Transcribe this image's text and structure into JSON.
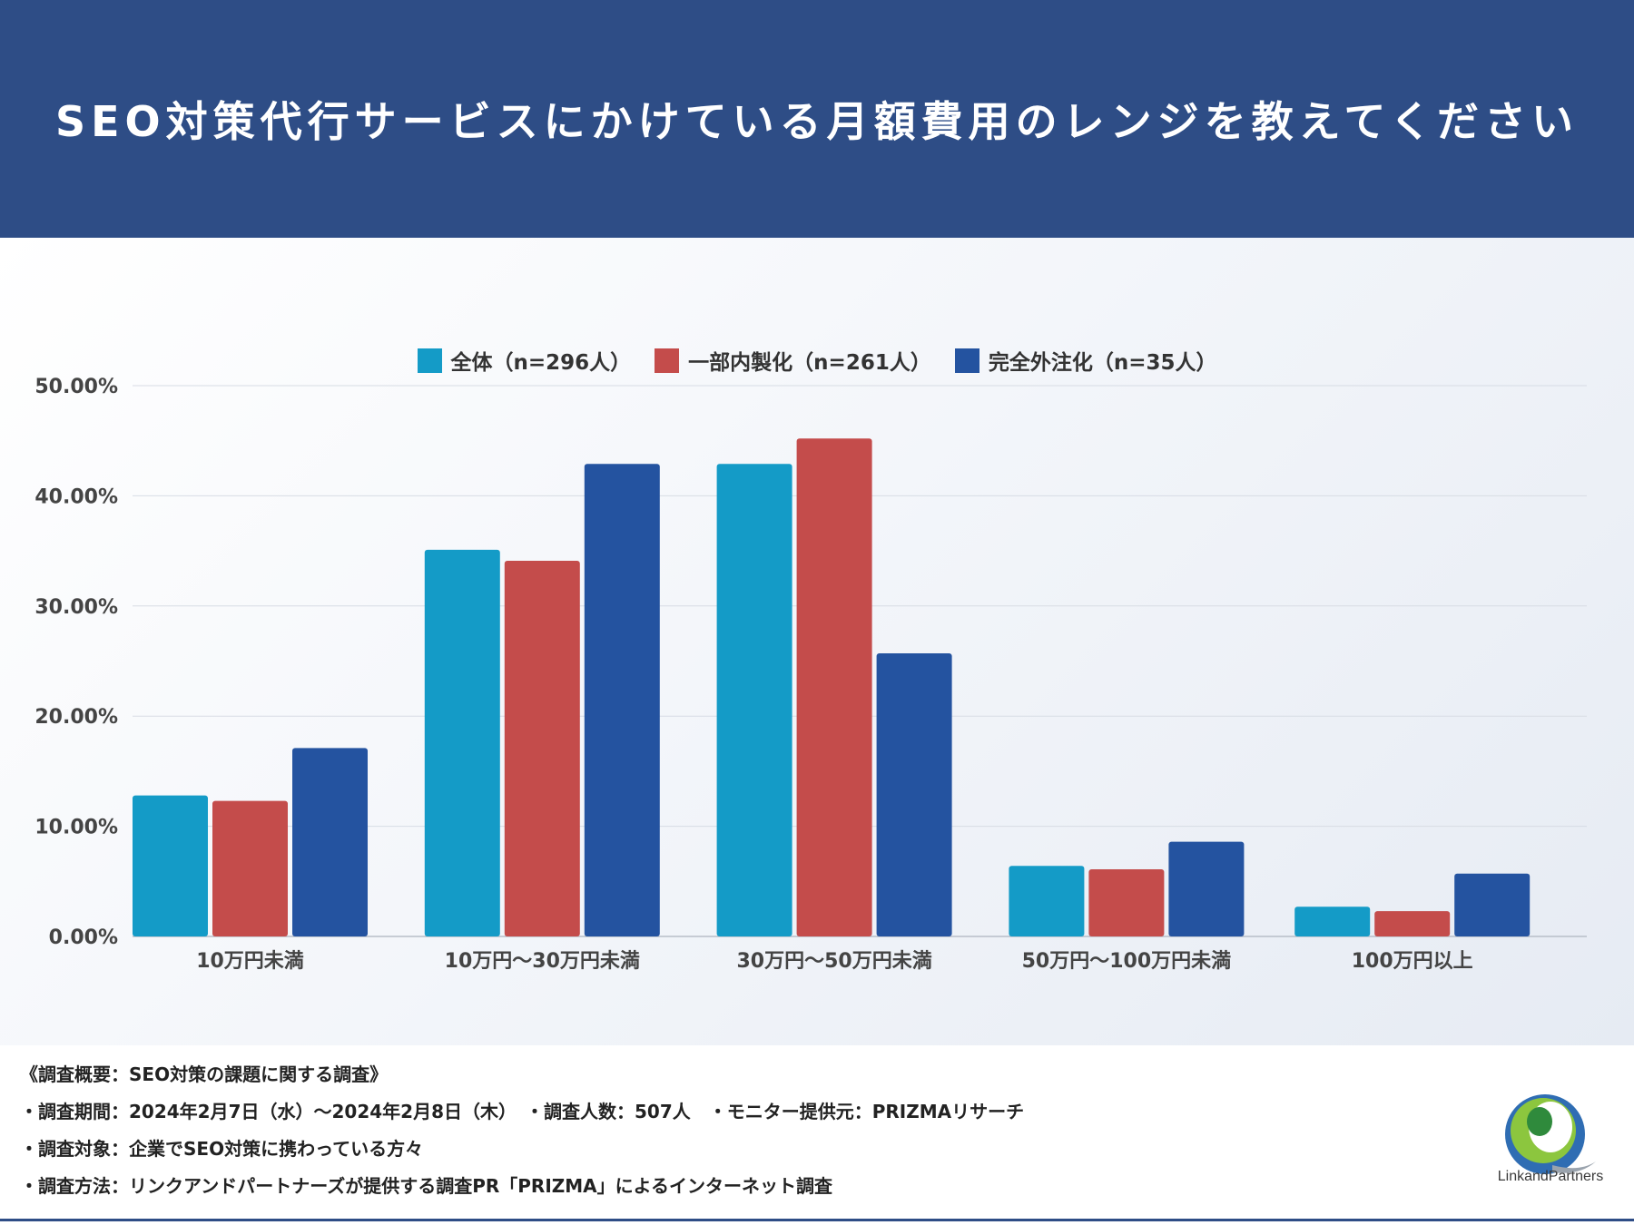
{
  "header": {
    "title": "SEO対策代行サービスにかけている月額費用のレンジを教えてください"
  },
  "colors": {
    "header_bg": "#2e4d86",
    "series": [
      "#149bc7",
      "#c44c4b",
      "#2453a0"
    ]
  },
  "chart_data": {
    "type": "bar",
    "title": "",
    "xlabel": "",
    "ylabel": "",
    "categories": [
      "10万円未満",
      "10万円〜30万円未満",
      "30万円〜50万円未満",
      "50万円〜100万円未満",
      "100万円以上"
    ],
    "series": [
      {
        "name": "全体（n=296人）",
        "values": [
          12.8,
          35.1,
          42.9,
          6.4,
          2.7
        ]
      },
      {
        "name": "一部内製化（n=261人）",
        "values": [
          12.3,
          34.1,
          45.2,
          6.1,
          2.3
        ]
      },
      {
        "name": "完全外注化（n=35人）",
        "values": [
          17.1,
          42.9,
          25.7,
          8.6,
          5.7
        ]
      }
    ],
    "ylim": [
      0,
      50
    ],
    "yticks": [
      "0.00%",
      "10.00%",
      "20.00%",
      "30.00%",
      "40.00%",
      "50.00%"
    ],
    "grid": true,
    "legend_position": "top-center"
  },
  "footer": {
    "notes": [
      "《調査概要：SEO対策の課題に関する調査》",
      "・調査期間：2024年2月7日（水）〜2024年2月8日（木）　・調査人数：507人　・モニター提供元：PRIZMAリサーチ",
      "・調査対象：企業でSEO対策に携わっている方々",
      "・調査方法：リンクアンドパートナーズが提供する調査PR「PRIZMA」によるインターネット調査"
    ],
    "logo_text": "LinkandPartners",
    "logo_icon": "link-and-partners-logo-icon"
  }
}
